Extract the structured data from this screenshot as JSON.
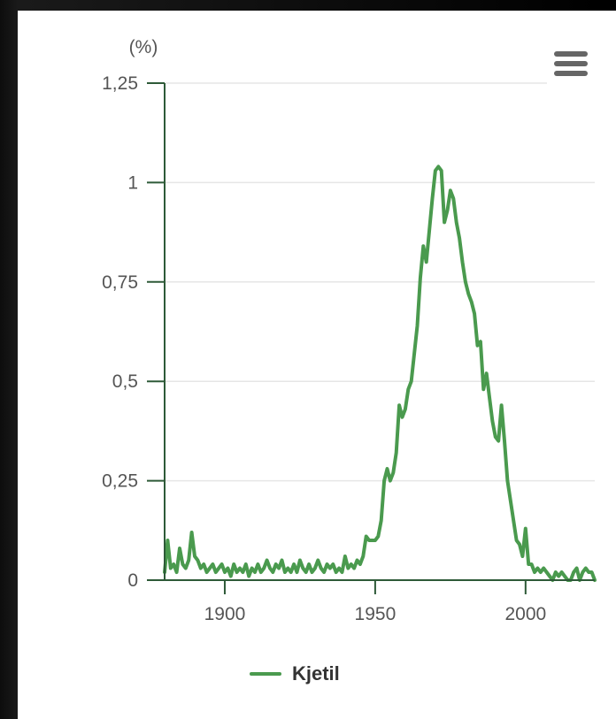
{
  "chart_data": {
    "type": "line",
    "ylabel": "(%)",
    "xlim": [
      1880,
      2023
    ],
    "ylim": [
      0,
      1.25
    ],
    "x_ticks": [
      "1900",
      "1950",
      "2000"
    ],
    "y_ticks": [
      "0",
      "0,25",
      "0,5",
      "0,75",
      "1",
      "1,25"
    ],
    "grid": true,
    "legend_position": "bottom",
    "series": [
      {
        "name": "Kjetil",
        "color": "#4a9a4e",
        "points": [
          [
            1880,
            0.02
          ],
          [
            1881,
            0.1
          ],
          [
            1882,
            0.03
          ],
          [
            1883,
            0.04
          ],
          [
            1884,
            0.02
          ],
          [
            1885,
            0.08
          ],
          [
            1886,
            0.04
          ],
          [
            1887,
            0.03
          ],
          [
            1888,
            0.05
          ],
          [
            1889,
            0.12
          ],
          [
            1890,
            0.06
          ],
          [
            1891,
            0.05
          ],
          [
            1892,
            0.03
          ],
          [
            1893,
            0.04
          ],
          [
            1894,
            0.02
          ],
          [
            1895,
            0.03
          ],
          [
            1896,
            0.04
          ],
          [
            1897,
            0.02
          ],
          [
            1898,
            0.03
          ],
          [
            1899,
            0.04
          ],
          [
            1900,
            0.02
          ],
          [
            1901,
            0.03
          ],
          [
            1902,
            0.01
          ],
          [
            1903,
            0.04
          ],
          [
            1904,
            0.02
          ],
          [
            1905,
            0.03
          ],
          [
            1906,
            0.02
          ],
          [
            1907,
            0.04
          ],
          [
            1908,
            0.01
          ],
          [
            1909,
            0.03
          ],
          [
            1910,
            0.02
          ],
          [
            1911,
            0.04
          ],
          [
            1912,
            0.02
          ],
          [
            1913,
            0.03
          ],
          [
            1914,
            0.05
          ],
          [
            1915,
            0.03
          ],
          [
            1916,
            0.02
          ],
          [
            1917,
            0.04
          ],
          [
            1918,
            0.03
          ],
          [
            1919,
            0.05
          ],
          [
            1920,
            0.02
          ],
          [
            1921,
            0.03
          ],
          [
            1922,
            0.02
          ],
          [
            1923,
            0.04
          ],
          [
            1924,
            0.02
          ],
          [
            1925,
            0.05
          ],
          [
            1926,
            0.03
          ],
          [
            1927,
            0.02
          ],
          [
            1928,
            0.04
          ],
          [
            1929,
            0.02
          ],
          [
            1930,
            0.03
          ],
          [
            1931,
            0.05
          ],
          [
            1932,
            0.03
          ],
          [
            1933,
            0.02
          ],
          [
            1934,
            0.04
          ],
          [
            1935,
            0.03
          ],
          [
            1936,
            0.04
          ],
          [
            1937,
            0.02
          ],
          [
            1938,
            0.03
          ],
          [
            1939,
            0.02
          ],
          [
            1940,
            0.06
          ],
          [
            1941,
            0.03
          ],
          [
            1942,
            0.04
          ],
          [
            1943,
            0.03
          ],
          [
            1944,
            0.05
          ],
          [
            1945,
            0.04
          ],
          [
            1946,
            0.06
          ],
          [
            1947,
            0.11
          ],
          [
            1948,
            0.1
          ],
          [
            1949,
            0.1
          ],
          [
            1950,
            0.1
          ],
          [
            1951,
            0.11
          ],
          [
            1952,
            0.15
          ],
          [
            1953,
            0.25
          ],
          [
            1954,
            0.28
          ],
          [
            1955,
            0.25
          ],
          [
            1956,
            0.27
          ],
          [
            1957,
            0.32
          ],
          [
            1958,
            0.44
          ],
          [
            1959,
            0.41
          ],
          [
            1960,
            0.43
          ],
          [
            1961,
            0.48
          ],
          [
            1962,
            0.5
          ],
          [
            1963,
            0.57
          ],
          [
            1964,
            0.64
          ],
          [
            1965,
            0.76
          ],
          [
            1966,
            0.84
          ],
          [
            1967,
            0.8
          ],
          [
            1968,
            0.88
          ],
          [
            1969,
            0.96
          ],
          [
            1970,
            1.03
          ],
          [
            1971,
            1.04
          ],
          [
            1972,
            1.03
          ],
          [
            1973,
            0.9
          ],
          [
            1974,
            0.93
          ],
          [
            1975,
            0.98
          ],
          [
            1976,
            0.96
          ],
          [
            1977,
            0.9
          ],
          [
            1978,
            0.86
          ],
          [
            1979,
            0.8
          ],
          [
            1980,
            0.75
          ],
          [
            1981,
            0.72
          ],
          [
            1982,
            0.7
          ],
          [
            1983,
            0.67
          ],
          [
            1984,
            0.59
          ],
          [
            1985,
            0.6
          ],
          [
            1986,
            0.48
          ],
          [
            1987,
            0.52
          ],
          [
            1988,
            0.46
          ],
          [
            1989,
            0.4
          ],
          [
            1990,
            0.36
          ],
          [
            1991,
            0.35
          ],
          [
            1992,
            0.44
          ],
          [
            1993,
            0.35
          ],
          [
            1994,
            0.25
          ],
          [
            1995,
            0.2
          ],
          [
            1996,
            0.15
          ],
          [
            1997,
            0.1
          ],
          [
            1998,
            0.09
          ],
          [
            1999,
            0.06
          ],
          [
            2000,
            0.13
          ],
          [
            2001,
            0.04
          ],
          [
            2002,
            0.04
          ],
          [
            2003,
            0.02
          ],
          [
            2004,
            0.03
          ],
          [
            2005,
            0.02
          ],
          [
            2006,
            0.03
          ],
          [
            2007,
            0.02
          ],
          [
            2008,
            0.01
          ],
          [
            2009,
            0.0
          ],
          [
            2010,
            0.02
          ],
          [
            2011,
            0.01
          ],
          [
            2012,
            0.02
          ],
          [
            2013,
            0.01
          ],
          [
            2014,
            0.0
          ],
          [
            2015,
            0.0
          ],
          [
            2016,
            0.02
          ],
          [
            2017,
            0.03
          ],
          [
            2018,
            0.0
          ],
          [
            2019,
            0.02
          ],
          [
            2020,
            0.03
          ],
          [
            2021,
            0.02
          ],
          [
            2022,
            0.02
          ],
          [
            2023,
            0.0
          ]
        ]
      }
    ]
  },
  "legend": {
    "label": "Kjetil"
  },
  "menu": {
    "icon": "hamburger-icon"
  }
}
